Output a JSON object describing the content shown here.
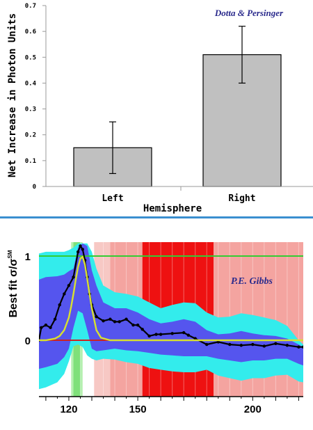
{
  "chart_data": [
    {
      "type": "bar",
      "annotation": "Dotta & Persinger",
      "xlabel": "Hemisphere",
      "ylabel": "Net Increase in Photon Units",
      "categories": [
        "Left",
        "Right"
      ],
      "values": [
        0.15,
        0.51
      ],
      "error_bars": [
        [
          0.05,
          0.25
        ],
        [
          0.4,
          0.62
        ]
      ],
      "ylim": [
        0,
        0.7
      ],
      "yticks": [
        "0",
        "0.1",
        "0.2",
        "0.3",
        "0.4",
        "0.5",
        "0.6",
        "0.7"
      ],
      "bar_color": "#c0c0c0"
    },
    {
      "type": "area",
      "annotation": "P.E. Gibbs",
      "ylabel": "Best fit σ/σ",
      "ylabel_superscript": "SM",
      "xlim": [
        107,
        222
      ],
      "ylim": [
        -0.75,
        1.15
      ],
      "xticks": [
        "120",
        "150",
        "200"
      ],
      "yticks": [
        "0",
        "1"
      ],
      "reference_lines": [
        {
          "y": 1,
          "color": "#33cc33"
        },
        {
          "y": 0,
          "color": "#cc2222"
        }
      ],
      "excluded_regions": [
        {
          "from": 131,
          "to": 138,
          "color": "#f7c8c4"
        },
        {
          "from": 138,
          "to": 152,
          "color": "#f4a4a0"
        },
        {
          "from": 152,
          "to": 183,
          "color": "#ee1111"
        },
        {
          "from": 183,
          "to": 222,
          "color": "#f4a4a0"
        }
      ],
      "allowed_regions": [
        {
          "from": 121,
          "to": 126,
          "color": "#b5f0b0"
        },
        {
          "from": 122,
          "to": 125,
          "color": "#7fe07a"
        }
      ],
      "series": [
        {
          "name": "",
          "color": "#000000",
          "x": [
            107,
            108,
            110,
            112,
            114,
            116,
            118,
            120,
            122,
            124,
            125,
            126,
            127,
            128,
            129,
            130,
            132,
            135,
            138,
            140,
            142,
            145,
            148,
            150,
            152,
            155,
            158,
            160,
            165,
            170,
            172,
            175,
            180,
            185,
            190,
            195,
            200,
            205,
            210,
            215,
            220,
            222
          ],
          "y": [
            0.0,
            0.15,
            0.18,
            0.15,
            0.25,
            0.42,
            0.55,
            0.65,
            0.75,
            1.05,
            1.12,
            1.08,
            0.95,
            0.75,
            0.55,
            0.42,
            0.28,
            0.23,
            0.25,
            0.22,
            0.22,
            0.25,
            0.18,
            0.18,
            0.13,
            0.05,
            0.07,
            0.07,
            0.08,
            0.09,
            0.06,
            0.02,
            -0.05,
            -0.02,
            -0.05,
            -0.06,
            -0.05,
            -0.07,
            -0.04,
            -0.06,
            -0.08,
            -0.08
          ]
        },
        {
          "name": "",
          "color": "#d8e030",
          "x": [
            107,
            110,
            114,
            116,
            118,
            120,
            121,
            122,
            123,
            124,
            125,
            126,
            127,
            128,
            129,
            130,
            132,
            134,
            138,
            150,
            222
          ],
          "y": [
            0.0,
            0.0,
            0.02,
            0.05,
            0.12,
            0.27,
            0.4,
            0.55,
            0.72,
            0.87,
            0.97,
            0.99,
            0.9,
            0.73,
            0.55,
            0.38,
            0.12,
            0.03,
            0.0,
            0.0,
            0.0
          ]
        }
      ],
      "bands": [
        {
          "color": "#33ecec",
          "x": [
            107,
            110,
            115,
            118,
            120,
            122,
            124,
            126,
            128,
            130,
            132,
            135,
            140,
            145,
            150,
            155,
            160,
            165,
            170,
            175,
            180,
            185,
            190,
            195,
            200,
            205,
            210,
            215,
            220,
            222
          ],
          "upper": [
            1.03,
            1.05,
            1.05,
            1.05,
            1.07,
            1.1,
            1.15,
            1.15,
            1.15,
            1.05,
            0.85,
            0.65,
            0.57,
            0.55,
            0.52,
            0.45,
            0.38,
            0.42,
            0.45,
            0.44,
            0.33,
            0.27,
            0.28,
            0.32,
            0.3,
            0.27,
            0.24,
            0.17,
            0.0,
            -0.05
          ],
          "lower": [
            -0.58,
            -0.56,
            -0.5,
            -0.4,
            -0.25,
            -0.07,
            -0.05,
            -0.08,
            -0.18,
            -0.22,
            -0.24,
            -0.22,
            -0.23,
            -0.26,
            -0.28,
            -0.33,
            -0.35,
            -0.37,
            -0.38,
            -0.38,
            -0.35,
            -0.42,
            -0.45,
            -0.48,
            -0.45,
            -0.45,
            -0.42,
            -0.41,
            -0.49,
            -0.5
          ]
        },
        {
          "color": "#5555ee",
          "x": [
            107,
            110,
            115,
            118,
            120,
            122,
            124,
            126,
            128,
            130,
            132,
            135,
            140,
            145,
            150,
            155,
            160,
            165,
            170,
            175,
            180,
            185,
            190,
            195,
            200,
            205,
            210,
            215,
            220,
            222
          ],
          "upper": [
            0.72,
            0.75,
            0.76,
            0.78,
            0.82,
            0.85,
            1.1,
            1.15,
            1.12,
            0.83,
            0.65,
            0.45,
            0.38,
            0.38,
            0.33,
            0.25,
            0.2,
            0.22,
            0.25,
            0.22,
            0.12,
            0.07,
            0.08,
            0.11,
            0.08,
            0.06,
            0.05,
            0.02,
            -0.05,
            -0.08
          ],
          "lower": [
            -0.34,
            -0.32,
            -0.28,
            -0.2,
            -0.1,
            0.15,
            0.35,
            0.32,
            0.12,
            -0.1,
            -0.13,
            -0.12,
            -0.1,
            -0.12,
            -0.13,
            -0.15,
            -0.17,
            -0.18,
            -0.19,
            -0.19,
            -0.19,
            -0.22,
            -0.24,
            -0.26,
            -0.24,
            -0.24,
            -0.22,
            -0.22,
            -0.28,
            -0.3
          ]
        }
      ]
    }
  ]
}
